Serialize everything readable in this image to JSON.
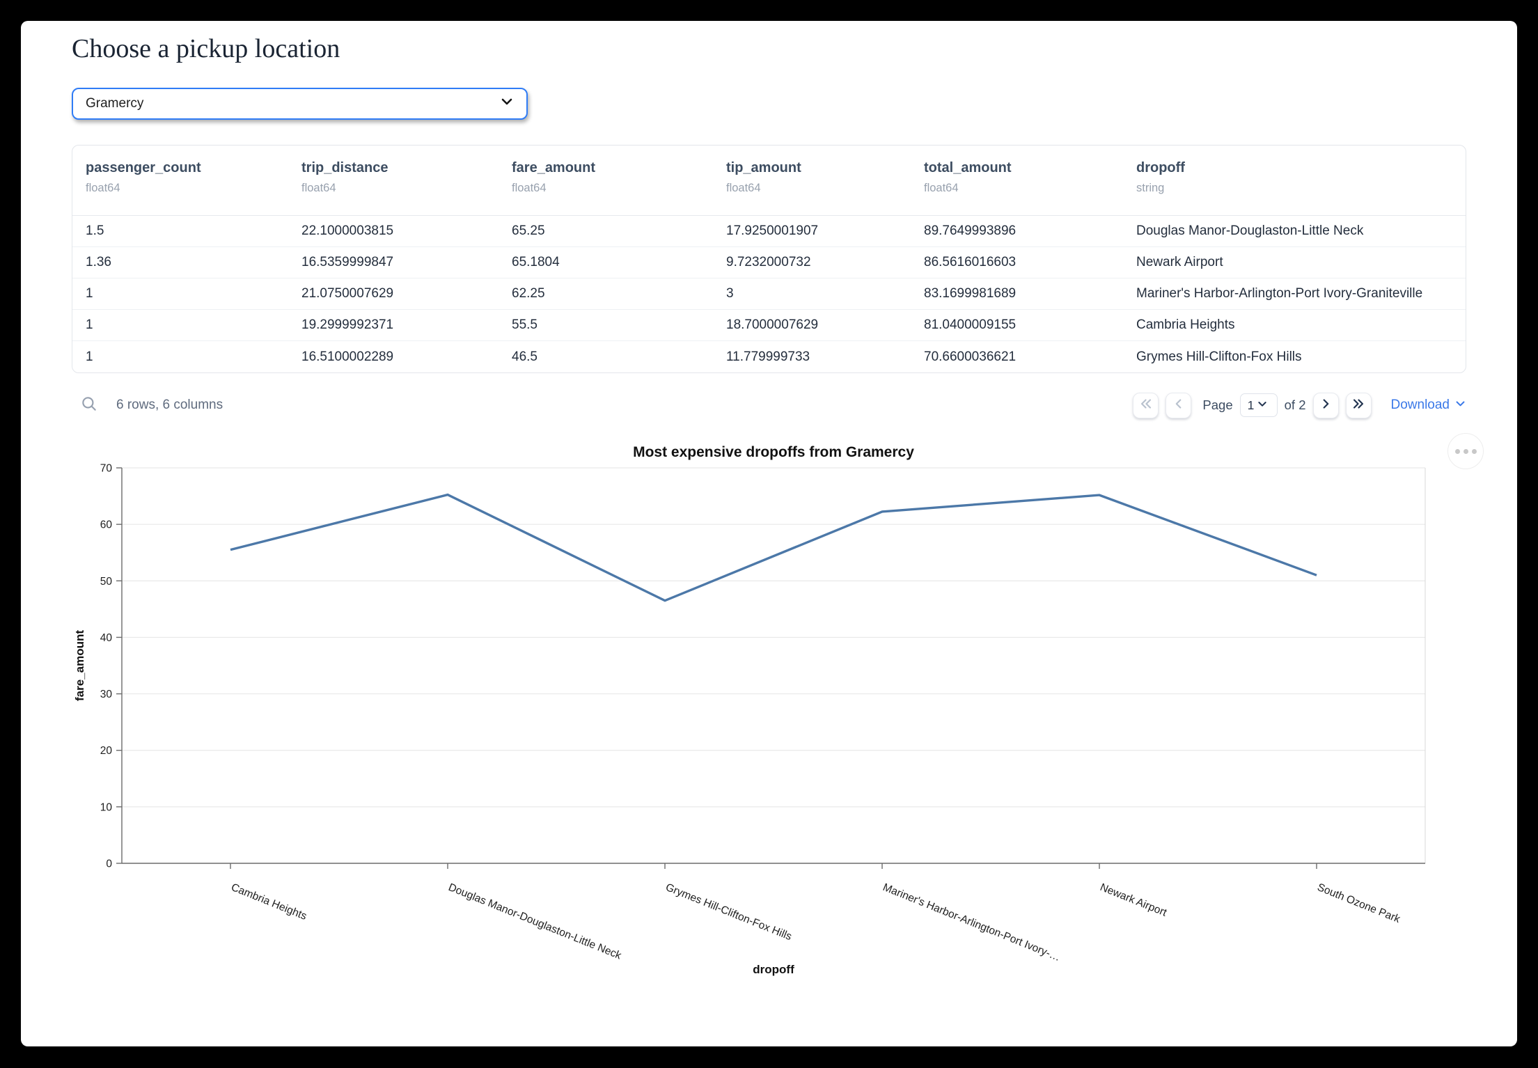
{
  "page": {
    "title": "Choose a pickup location"
  },
  "pickup_select": {
    "value": "Gramercy"
  },
  "icons": {
    "dropdown": "chevron-down",
    "search": "magnifier",
    "first_page": "double-chevron-left",
    "prev_page": "chevron-left",
    "next_page": "chevron-right",
    "last_page": "double-chevron-right",
    "download_caret": "chevron-down",
    "chart_menu": "ellipsis"
  },
  "table": {
    "columns": [
      {
        "name": "passenger_count",
        "type": "float64"
      },
      {
        "name": "trip_distance",
        "type": "float64"
      },
      {
        "name": "fare_amount",
        "type": "float64"
      },
      {
        "name": "tip_amount",
        "type": "float64"
      },
      {
        "name": "total_amount",
        "type": "float64"
      },
      {
        "name": "dropoff",
        "type": "string"
      }
    ],
    "rows": [
      [
        "1.5",
        "22.1000003815",
        "65.25",
        "17.9250001907",
        "89.7649993896",
        "Douglas Manor-Douglaston-Little Neck"
      ],
      [
        "1.36",
        "16.5359999847",
        "65.1804",
        "9.7232000732",
        "86.5616016603",
        "Newark Airport"
      ],
      [
        "1",
        "21.0750007629",
        "62.25",
        "3",
        "83.1699981689",
        "Mariner's Harbor-Arlington-Port Ivory-Graniteville"
      ],
      [
        "1",
        "19.2999992371",
        "55.5",
        "18.7000007629",
        "81.0400009155",
        "Cambria Heights"
      ],
      [
        "1",
        "16.5100002289",
        "46.5",
        "11.779999733",
        "70.6600036621",
        "Grymes Hill-Clifton-Fox Hills"
      ]
    ],
    "summary": "6 rows, 6 columns",
    "pagination": {
      "page_label": "Page",
      "current_page": "1",
      "of_label": "of 2",
      "download_label": "Download"
    }
  },
  "chart_data": {
    "type": "line",
    "title": "Most expensive dropoffs from Gramercy",
    "xlabel": "dropoff",
    "ylabel": "fare_amount",
    "categories": [
      "Cambria Heights",
      "Douglas Manor-Douglaston-Little Neck",
      "Grymes Hill-Clifton-Fox Hills",
      "Mariner's Harbor-Arlington-Port Ivory-…",
      "Newark Airport",
      "South Ozone Park"
    ],
    "values": [
      55.5,
      65.25,
      46.5,
      62.25,
      65.1804,
      51
    ],
    "ylim": [
      0,
      70
    ],
    "yticks": [
      0,
      10,
      20,
      30,
      40,
      50,
      60,
      70
    ],
    "grid": true,
    "legend": "none",
    "line_color": "#4c78a8"
  },
  "colors": {
    "accent": "#2f7cf6",
    "link": "#3b79e8",
    "line": "#4c78a8"
  }
}
